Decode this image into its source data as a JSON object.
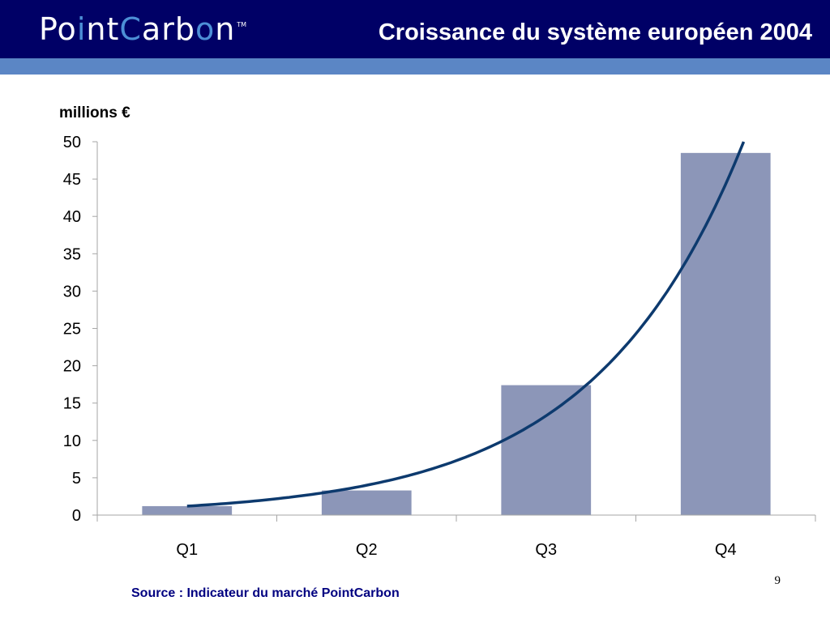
{
  "header": {
    "logo": {
      "part1": "Po",
      "accent1": "i",
      "part2": "nt",
      "accent2": "C",
      "part3": "arb",
      "accent3": "o",
      "part4": "n",
      "tm": "TM"
    },
    "title": "Croissance du système européen 2004"
  },
  "chart_data": {
    "type": "bar",
    "ylabel": "millions €",
    "categories": [
      "Q1",
      "Q2",
      "Q3",
      "Q4"
    ],
    "values": [
      1.2,
      3.3,
      17.4,
      48.5
    ],
    "ylim": [
      0,
      50
    ],
    "yticks": [
      0,
      5,
      10,
      15,
      20,
      25,
      30,
      35,
      40,
      45,
      50
    ],
    "grid": false,
    "legend": "none",
    "trend": {
      "type": "exponential",
      "start": 1.2,
      "growth": 3.33
    },
    "colors": {
      "bars": "#8c96b8",
      "trend": "#0d3a6e"
    }
  },
  "footer": {
    "source": "Source : Indicateur du marché PointCarbon",
    "page_number": "9"
  }
}
